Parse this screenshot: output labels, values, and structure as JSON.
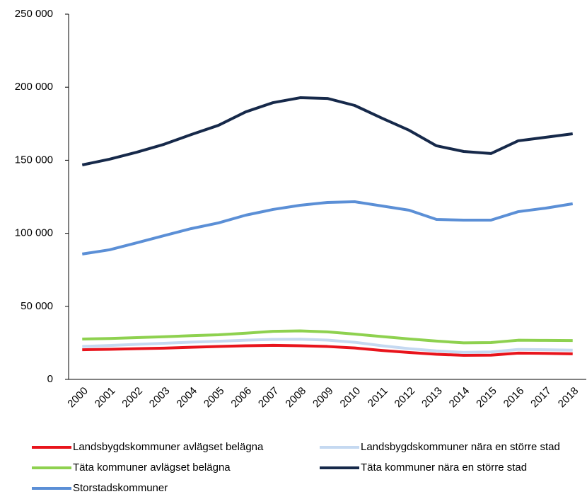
{
  "chart_data": {
    "type": "line",
    "categories": [
      "2000",
      "2001",
      "2002",
      "2003",
      "2004",
      "2005",
      "2006",
      "2007",
      "2008",
      "2009",
      "2010",
      "2011",
      "2012",
      "2013",
      "2014",
      "2015",
      "2016",
      "2017",
      "2018"
    ],
    "series": [
      {
        "name": "Landsbygdskommuner avlägset belägna",
        "color": "#e8141c",
        "values": [
          20300,
          20600,
          21000,
          21400,
          22000,
          22500,
          23000,
          23300,
          23000,
          22500,
          21500,
          19800,
          18400,
          17200,
          16500,
          16600,
          18000,
          17800,
          17500
        ]
      },
      {
        "name": "Landsbygdskommuner nära en större stad",
        "color": "#c5d9f1",
        "values": [
          22500,
          23200,
          24000,
          24700,
          25500,
          26100,
          26800,
          27400,
          27500,
          26900,
          25400,
          23000,
          21000,
          19500,
          18500,
          18800,
          20500,
          20300,
          20000
        ]
      },
      {
        "name": "Täta kommuner avlägset belägna",
        "color": "#8ed14f",
        "values": [
          27600,
          28000,
          28600,
          29200,
          29900,
          30500,
          31600,
          32900,
          33200,
          32500,
          31000,
          29300,
          27700,
          26200,
          25000,
          25200,
          26800,
          26700,
          26600
        ]
      },
      {
        "name": "Täta kommuner nära en större stad",
        "color": "#16294a",
        "values": [
          146800,
          150700,
          155500,
          160900,
          167600,
          173900,
          183100,
          189400,
          192800,
          192300,
          187500,
          178800,
          170500,
          159900,
          156000,
          154600,
          163300,
          165700,
          168100
        ]
      },
      {
        "name": "Storstadskommuner",
        "color": "#5b8fd6",
        "values": [
          85800,
          88700,
          93500,
          98400,
          103200,
          107100,
          112400,
          116300,
          119200,
          121100,
          121600,
          118700,
          115800,
          109500,
          109000,
          109000,
          114800,
          117200,
          120200
        ]
      }
    ],
    "ylim": [
      0,
      250000
    ],
    "yticks": [
      {
        "value": 0,
        "label": "0"
      },
      {
        "value": 50000,
        "label": "50 000"
      },
      {
        "value": 100000,
        "label": "100 000"
      },
      {
        "value": 150000,
        "label": "150 000"
      },
      {
        "value": 200000,
        "label": "200 000"
      },
      {
        "value": 250000,
        "label": "250 000"
      }
    ],
    "legend": "bottom"
  }
}
